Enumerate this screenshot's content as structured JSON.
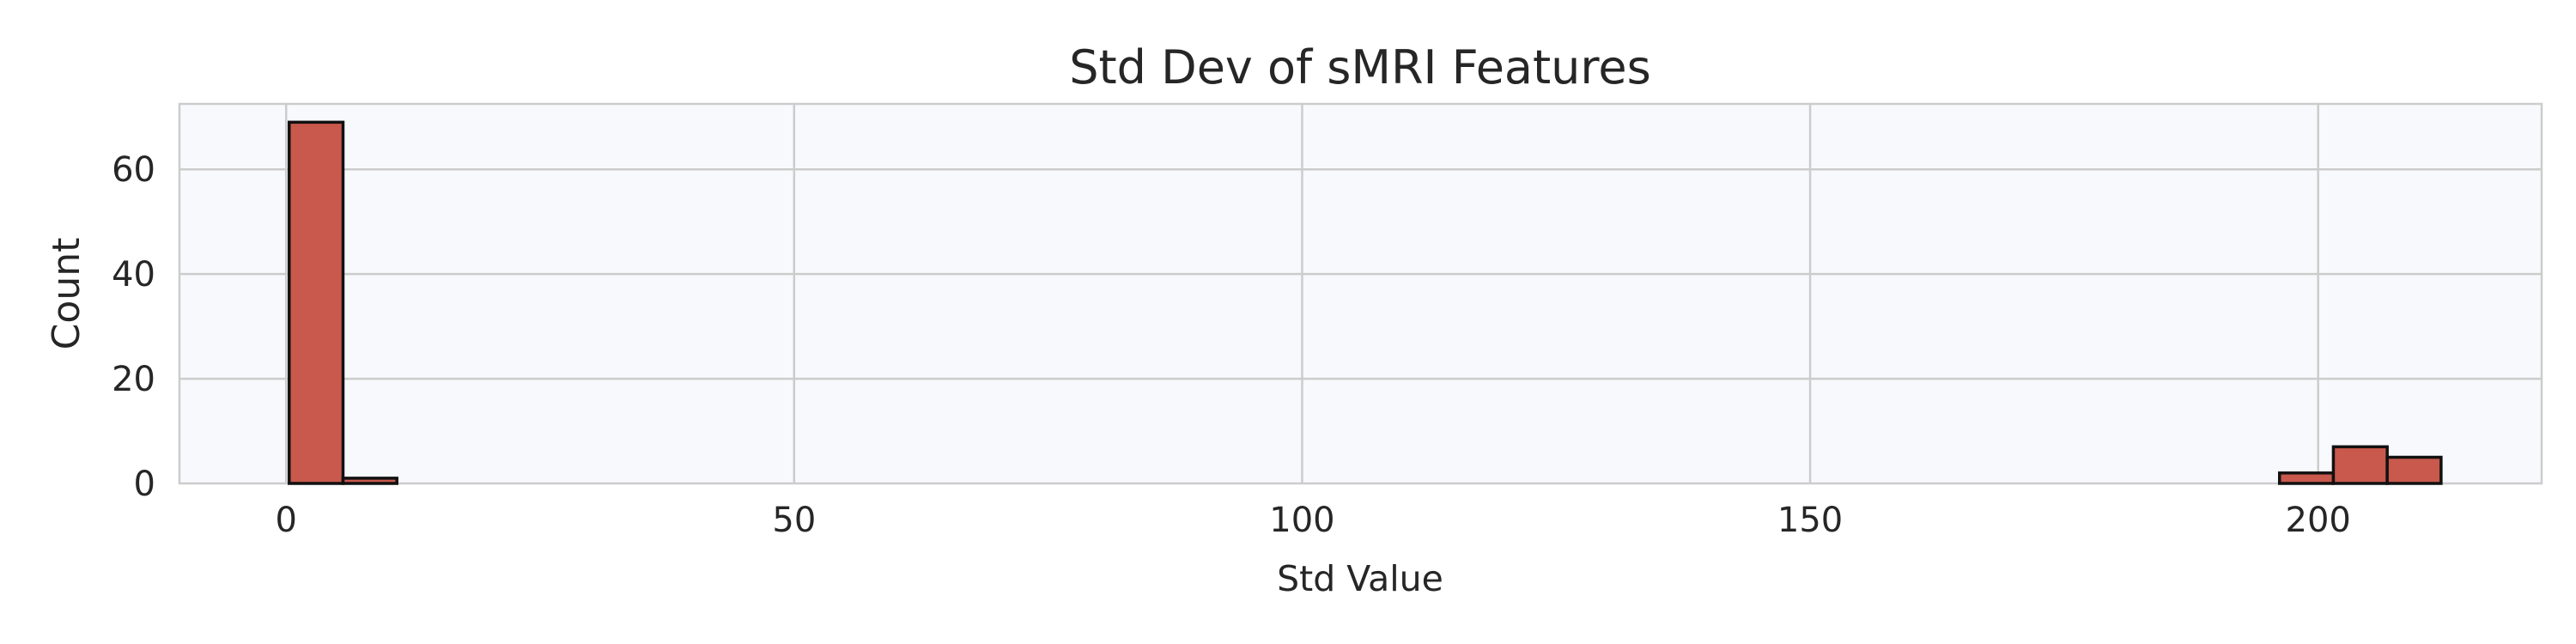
{
  "chart_data": {
    "type": "bar",
    "title": "Std Dev of sMRI Features",
    "xlabel": "Std Value",
    "ylabel": "Count",
    "xlim": [
      -10.5,
      222
    ],
    "ylim": [
      0,
      72.5
    ],
    "xticks": [
      0,
      50,
      100,
      150,
      200
    ],
    "yticks": [
      0,
      20,
      40,
      60
    ],
    "grid": true,
    "plot_background": "#f8f9fc",
    "bar_color": "#c8594c",
    "bar_edge_color": "#111111",
    "bins": [
      {
        "x0": 0.3,
        "x1": 5.6,
        "count": 69
      },
      {
        "x0": 5.6,
        "x1": 10.9,
        "count": 1
      },
      {
        "x0": 196.2,
        "x1": 201.5,
        "count": 2
      },
      {
        "x0": 201.5,
        "x1": 206.8,
        "count": 7
      },
      {
        "x0": 206.8,
        "x1": 212.1,
        "count": 5
      }
    ]
  }
}
